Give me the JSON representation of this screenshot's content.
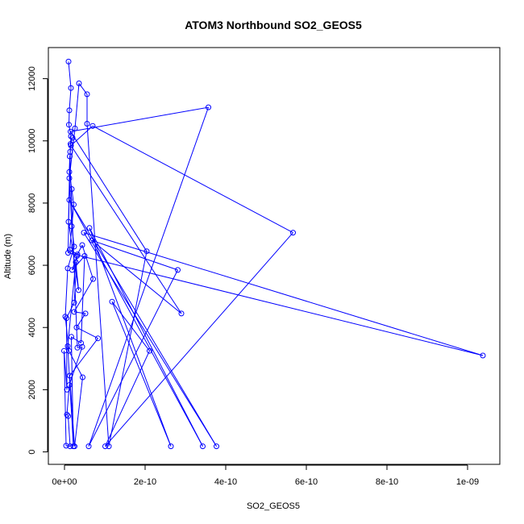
{
  "chart_data": {
    "type": "line",
    "title": "ATOM3 Northbound SO2_GEOS5",
    "xlabel": "SO2_GEOS5",
    "ylabel": "Altitude (m)",
    "xlim": [
      -4e-11,
      1.08e-09
    ],
    "ylim": [
      -400,
      13000
    ],
    "x_ticks": [
      0,
      2e-10,
      4e-10,
      6e-10,
      8e-10,
      1e-09
    ],
    "x_tick_labels": [
      "0e+00",
      "2e-10",
      "4e-10",
      "6e-10",
      "8e-10",
      "1e-09"
    ],
    "y_ticks": [
      0,
      2000,
      4000,
      6000,
      8000,
      10000,
      12000
    ],
    "y_tick_labels": [
      "0",
      "2000",
      "4000",
      "6000",
      "8000",
      "10000",
      "12000"
    ],
    "grid": false,
    "legend": "none",
    "color": "#0000ff",
    "series": [
      {
        "marker": "open-circle",
        "points": [
          [
            1e-11,
            12550
          ],
          [
            1.6e-11,
            11700
          ],
          [
            1.2e-11,
            10980
          ],
          [
            1.1e-11,
            10520
          ],
          [
            1.6e-11,
            10150
          ],
          [
            1.4e-11,
            9650
          ],
          [
            1.2e-11,
            9000
          ],
          [
            1.8e-11,
            8450
          ],
          [
            2.3e-11,
            7950
          ],
          [
            1.3e-11,
            6500
          ],
          [
            3.2e-11,
            6350
          ],
          [
            4.4e-11,
            6650
          ],
          [
            7.1e-11,
            5560
          ],
          [
            2.4e-11,
            4500
          ],
          [
            5.2e-11,
            4450
          ],
          [
            3e-11,
            4000
          ],
          [
            8.3e-11,
            3650
          ],
          [
            1.3e-11,
            2450
          ],
          [
            2.5e-11,
            180
          ],
          [
            4.5e-11,
            2400
          ],
          [
            1.1e-11,
            3250
          ],
          [
            2e-12,
            4350
          ],
          [
            8e-12,
            5900
          ],
          [
            2.4e-11,
            6600
          ],
          [
            1.8e-11,
            7250
          ],
          [
            1.2e-11,
            8800
          ],
          [
            2.6e-11,
            10400
          ],
          [
            3.6e-11,
            11850
          ],
          [
            5.6e-11,
            11500
          ],
          [
            5.6e-11,
            10550
          ],
          [
            1.1e-10,
            180
          ],
          [
            2.04e-10,
            6450
          ],
          [
            1.5e-11,
            10300
          ],
          [
            3.57e-10,
            11080
          ],
          [
            6e-11,
            180
          ],
          [
            2.81e-10,
            5850
          ],
          [
            6.8e-11,
            6800
          ],
          [
            2.9e-10,
            4450
          ],
          [
            1.6e-11,
            9850
          ],
          [
            7e-11,
            10480
          ],
          [
            5.67e-10,
            7050
          ],
          [
            1.01e-10,
            180
          ],
          [
            2.11e-10,
            3250
          ],
          [
            1.18e-10,
            4830
          ],
          [
            2.64e-10,
            180
          ],
          [
            6.2e-11,
            7200
          ],
          [
            3.43e-10,
            180
          ],
          [
            1.2e-11,
            8100
          ],
          [
            3.77e-10,
            180
          ],
          [
            4.8e-11,
            7050
          ],
          [
            1.038e-09,
            3100
          ],
          [
            9e-12,
            6400
          ],
          [
            1.3e-11,
            9500
          ],
          [
            3.2e-11,
            3350
          ],
          [
            4.4e-11,
            3380
          ],
          [
            1.2e-11,
            2150
          ],
          [
            6e-12,
            1200
          ],
          [
            9e-12,
            1150
          ],
          [
            1.4e-11,
            180
          ],
          [
            4e-12,
            200
          ],
          [
            -1e-12,
            3250
          ],
          [
            6e-12,
            2000
          ],
          [
            5e-12,
            4300
          ],
          [
            2.4e-11,
            4800
          ],
          [
            3.1e-11,
            6300
          ],
          [
            1.9e-11,
            5850
          ],
          [
            5e-11,
            6300
          ],
          [
            4.1e-11,
            3500
          ],
          [
            1.7e-11,
            3700
          ],
          [
            2.2e-11,
            180
          ],
          [
            8e-12,
            3400
          ],
          [
            2.8e-11,
            6100
          ],
          [
            3.5e-11,
            5200
          ],
          [
            1e-11,
            7400
          ],
          [
            1.5e-11,
            9900
          ],
          [
            2e-11,
            10100
          ]
        ]
      }
    ]
  }
}
